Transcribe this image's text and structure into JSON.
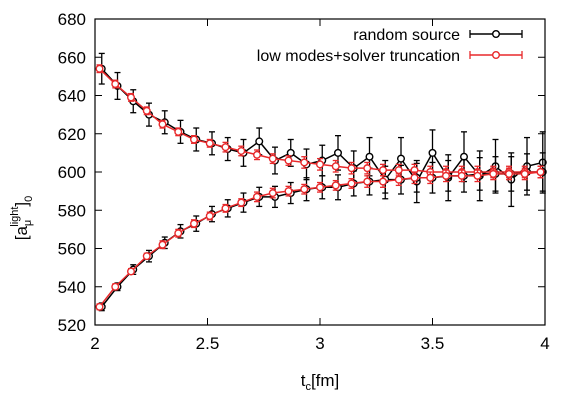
{
  "chart_data": {
    "type": "scatter",
    "title": "",
    "xlabel": "t",
    "xlabel_sub": "c",
    "xlabel_unit": "[fm]",
    "ylabel_bracket_open": "[a",
    "ylabel_sub": "μ",
    "ylabel_sup": "light",
    "ylabel_bracket_close": "]",
    "ylabel_outer_sub": "0",
    "xlim": [
      2,
      4
    ],
    "ylim": [
      520,
      680
    ],
    "x_ticks": [
      2,
      2.5,
      3,
      3.5,
      4
    ],
    "x_tick_labels": [
      "2",
      "2.5",
      "3",
      "3.5",
      "4"
    ],
    "y_ticks": [
      520,
      540,
      560,
      580,
      600,
      620,
      640,
      660,
      680
    ],
    "y_tick_labels": [
      "520",
      "540",
      "560",
      "580",
      "600",
      "620",
      "640",
      "660",
      "680"
    ],
    "legend_position": "top-right",
    "grid": false,
    "series": [
      {
        "name": "random source",
        "color": "#000000",
        "marker": "open-circle",
        "curves": [
          {
            "x": [
              2.03,
              2.1,
              2.17,
              2.24,
              2.31,
              2.38,
              2.45,
              2.52,
              2.59,
              2.66,
              2.73,
              2.8,
              2.87,
              2.94,
              3.01,
              3.08,
              3.15,
              3.22,
              3.29,
              3.36,
              3.43,
              3.5,
              3.57,
              3.64,
              3.71,
              3.78,
              3.85,
              3.92,
              3.99
            ],
            "y": [
              654,
              645,
              637,
              630,
              626,
              621,
              617,
              615,
              612,
              610,
              616,
              606,
              610,
              604,
              606,
              610,
              602,
              608,
              596,
              607,
              595,
              610,
              597,
              608,
              598,
              603,
              596,
              603,
              605
            ],
            "err": [
              8,
              7,
              6,
              6,
              6,
              6,
              6,
              6,
              6,
              7,
              7,
              7,
              7,
              8,
              8,
              9,
              9,
              10,
              10,
              11,
              11,
              12,
              12,
              13,
              13,
              14,
              14,
              15,
              16
            ]
          },
          {
            "x": [
              2.03,
              2.1,
              2.17,
              2.24,
              2.31,
              2.38,
              2.45,
              2.52,
              2.59,
              2.66,
              2.73,
              2.8,
              2.87,
              2.94,
              3.01,
              3.08,
              3.15,
              3.22,
              3.29,
              3.36,
              3.43,
              3.5,
              3.57,
              3.64,
              3.71,
              3.78,
              3.85,
              3.92,
              3.99
            ],
            "y": [
              529.5,
              540,
              549,
              556,
              563,
              569,
              573,
              578,
              581,
              584,
              587,
              587,
              589,
              591,
              592,
              592,
              594,
              595,
              596,
              596,
              597,
              597,
              598,
              598,
              599,
              599,
              599,
              600,
              600
            ],
            "err": [
              2,
              2,
              2.5,
              3,
              3,
              3.5,
              4,
              4,
              4.5,
              5,
              5,
              5.5,
              5.5,
              6,
              6,
              6.5,
              6.5,
              7,
              7,
              7.5,
              7.5,
              8,
              8,
              8.5,
              8.5,
              9,
              9,
              9.5,
              10
            ]
          }
        ]
      },
      {
        "name": "low modes+solver truncation",
        "color": "#e8292b",
        "marker": "open-circle",
        "curves": [
          {
            "x": [
              2.02,
              2.09,
              2.16,
              2.23,
              2.3,
              2.37,
              2.44,
              2.51,
              2.58,
              2.65,
              2.72,
              2.79,
              2.86,
              2.93,
              3,
              3.07,
              3.14,
              3.21,
              3.28,
              3.35,
              3.42,
              3.49,
              3.56,
              3.63,
              3.7,
              3.77,
              3.84,
              3.91,
              3.98
            ],
            "y": [
              654,
              646,
              639,
              632,
              625,
              621,
              617,
              615,
              613,
              611,
              609,
              607,
              606,
              605,
              604,
              603,
              602,
              602,
              601,
              601,
              601,
              600,
              600,
              600,
              600,
              600,
              600,
              600,
              600
            ],
            "err": [
              2,
              2,
              2,
              2,
              2,
              2,
              2,
              2,
              2.5,
              2.5,
              2.5,
              2.5,
              2.5,
              3,
              3,
              3,
              3,
              3,
              3,
              3,
              3,
              3,
              3,
              3,
              3,
              3,
              3,
              3,
              3
            ]
          },
          {
            "x": [
              2.02,
              2.09,
              2.16,
              2.23,
              2.3,
              2.37,
              2.44,
              2.51,
              2.58,
              2.65,
              2.72,
              2.79,
              2.86,
              2.93,
              3,
              3.07,
              3.14,
              3.21,
              3.28,
              3.35,
              3.42,
              3.49,
              3.56,
              3.63,
              3.7,
              3.77,
              3.84,
              3.91,
              3.98
            ],
            "y": [
              529.5,
              540,
              548,
              556,
              562,
              568,
              573,
              577,
              581,
              584,
              587,
              589,
              590,
              591,
              592,
              593,
              594,
              595,
              595,
              596,
              597,
              597,
              598,
              598,
              598,
              599,
              599,
              599,
              600
            ],
            "err": [
              1.5,
              1.5,
              1.5,
              1.5,
              2,
              2,
              2,
              2,
              2,
              2,
              2.5,
              2.5,
              2.5,
              2.5,
              2.5,
              2.5,
              2.5,
              3,
              3,
              3,
              3,
              3,
              3,
              3,
              3,
              3,
              3,
              3,
              3
            ]
          }
        ]
      }
    ]
  }
}
